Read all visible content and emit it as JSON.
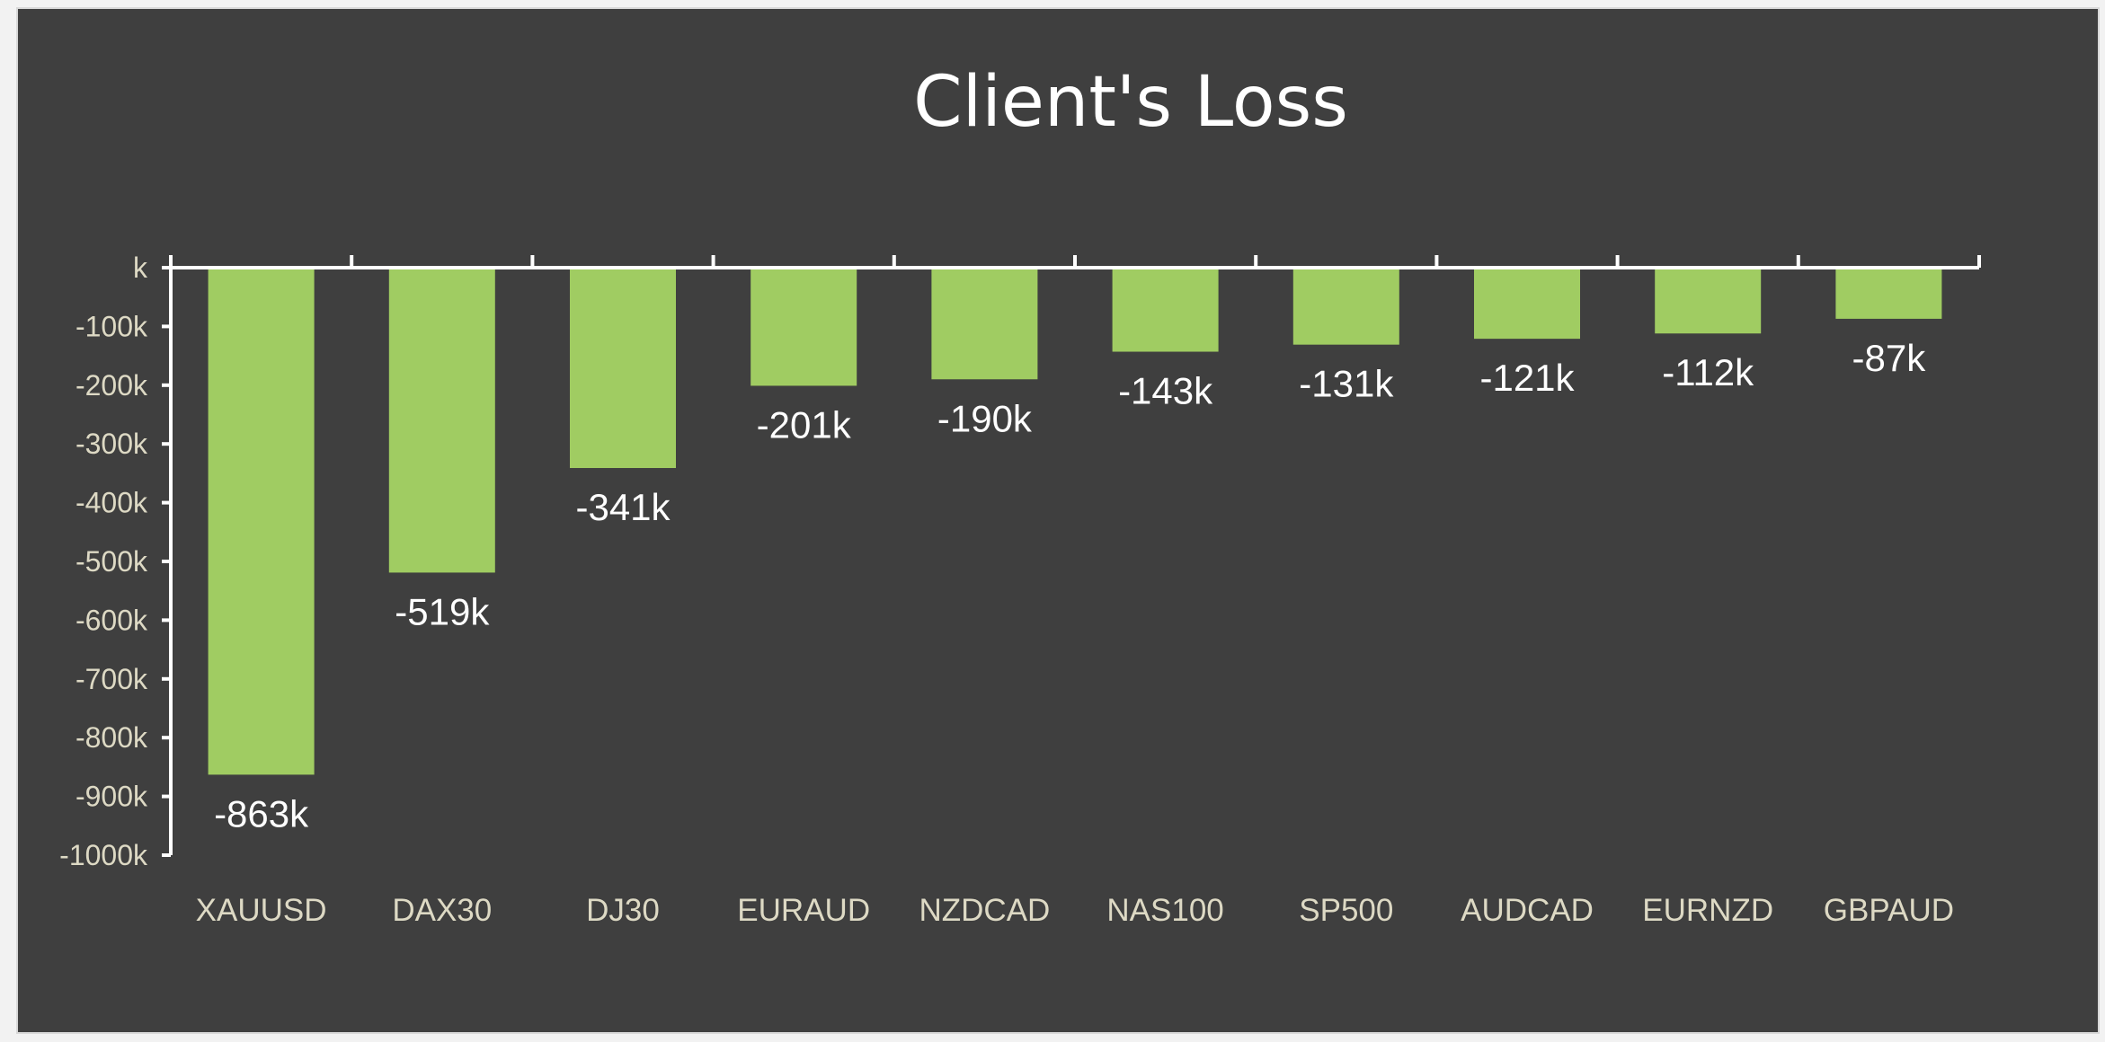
{
  "chart_data": {
    "type": "bar",
    "title": "Client's Loss",
    "xlabel": "",
    "ylabel": "",
    "categories": [
      "XAUUSD",
      "DAX30",
      "DJ30",
      "EURAUD",
      "NZDCAD",
      "NAS100",
      "SP500",
      "AUDCAD",
      "EURNZD",
      "GBPAUD"
    ],
    "values": [
      -863,
      -519,
      -341,
      -201,
      -190,
      -143,
      -131,
      -121,
      -112,
      -87
    ],
    "data_labels": [
      "-863k",
      "-519k",
      "-341k",
      "-201k",
      "-190k",
      "-143k",
      "-131k",
      "-121k",
      "-112k",
      "-87k"
    ],
    "yticks": [
      0,
      -100,
      -200,
      -300,
      -400,
      -500,
      -600,
      -700,
      -800,
      -900,
      -1000
    ],
    "ytick_labels": [
      "k",
      "-100k",
      "-200k",
      "-300k",
      "-400k",
      "-500k",
      "-600k",
      "-700k",
      "-800k",
      "-900k",
      "-1000k"
    ],
    "ylim": [
      -1000,
      0
    ],
    "grid": false,
    "legend": "none",
    "colors": {
      "background": "#3f3f3f",
      "bar": "#a0cc62",
      "axis": "#ffffff",
      "tick_label": "#ddd9c4",
      "data_label": "#ffffff",
      "title": "#ffffff"
    }
  }
}
